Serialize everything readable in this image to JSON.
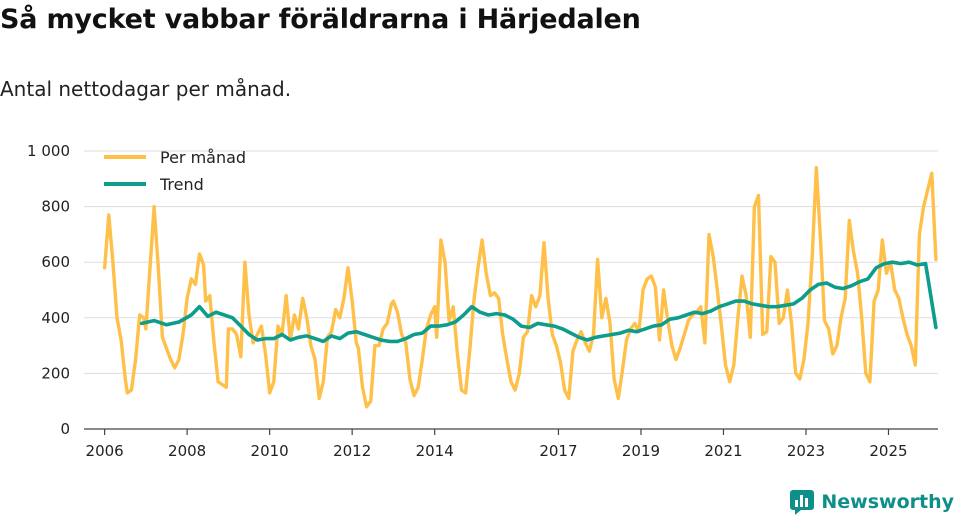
{
  "title": "Så mycket vabbar föräldrarna i Härjedalen",
  "subtitle": "Antal nettodagar per månad.",
  "brand": {
    "name": "Newsworthy",
    "icon": "newsworthy-logo-icon"
  },
  "colors": {
    "monthly": "#FFC04A",
    "trend": "#0E9C8C",
    "grid": "#dddddd",
    "axis": "#444444"
  },
  "chart_data": {
    "type": "line",
    "ylim": [
      0,
      1000
    ],
    "xlim": [
      2005.5,
      2026.2
    ],
    "y_ticks": [
      0,
      200,
      400,
      600,
      800,
      1000
    ],
    "y_tick_labels": [
      "0",
      "200",
      "400",
      "600",
      "800",
      "1 000"
    ],
    "x_ticks": [
      2006,
      2008,
      2010,
      2012,
      2014,
      2017,
      2019,
      2021,
      2023,
      2025
    ],
    "x_tick_labels": [
      "2006",
      "2008",
      "2010",
      "2012",
      "2014",
      "2017",
      "2019",
      "2021",
      "2023",
      "2025"
    ],
    "legend": {
      "position": "top-left",
      "entries": [
        "Per månad",
        "Trend"
      ]
    },
    "series": [
      {
        "name": "Per månad",
        "points": [
          [
            2006.0,
            580
          ],
          [
            2006.1,
            770
          ],
          [
            2006.2,
            600
          ],
          [
            2006.3,
            400
          ],
          [
            2006.4,
            320
          ],
          [
            2006.5,
            180
          ],
          [
            2006.55,
            130
          ],
          [
            2006.65,
            140
          ],
          [
            2006.75,
            250
          ],
          [
            2006.85,
            410
          ],
          [
            2006.95,
            400
          ],
          [
            2007.0,
            360
          ],
          [
            2007.1,
            580
          ],
          [
            2007.2,
            800
          ],
          [
            2007.3,
            580
          ],
          [
            2007.4,
            330
          ],
          [
            2007.5,
            290
          ],
          [
            2007.6,
            250
          ],
          [
            2007.7,
            220
          ],
          [
            2007.8,
            250
          ],
          [
            2007.9,
            340
          ],
          [
            2008.0,
            470
          ],
          [
            2008.1,
            540
          ],
          [
            2008.2,
            520
          ],
          [
            2008.3,
            630
          ],
          [
            2008.4,
            590
          ],
          [
            2008.45,
            460
          ],
          [
            2008.55,
            480
          ],
          [
            2008.65,
            310
          ],
          [
            2008.75,
            170
          ],
          [
            2008.85,
            160
          ],
          [
            2008.95,
            150
          ],
          [
            2009.0,
            360
          ],
          [
            2009.1,
            360
          ],
          [
            2009.2,
            340
          ],
          [
            2009.3,
            260
          ],
          [
            2009.4,
            600
          ],
          [
            2009.5,
            410
          ],
          [
            2009.6,
            310
          ],
          [
            2009.7,
            340
          ],
          [
            2009.8,
            370
          ],
          [
            2009.9,
            270
          ],
          [
            2010.0,
            130
          ],
          [
            2010.1,
            170
          ],
          [
            2010.2,
            370
          ],
          [
            2010.3,
            340
          ],
          [
            2010.4,
            480
          ],
          [
            2010.5,
            320
          ],
          [
            2010.6,
            410
          ],
          [
            2010.7,
            360
          ],
          [
            2010.8,
            470
          ],
          [
            2010.9,
            400
          ],
          [
            2011.0,
            300
          ],
          [
            2011.1,
            250
          ],
          [
            2011.2,
            110
          ],
          [
            2011.3,
            170
          ],
          [
            2011.4,
            330
          ],
          [
            2011.5,
            350
          ],
          [
            2011.6,
            430
          ],
          [
            2011.7,
            400
          ],
          [
            2011.8,
            470
          ],
          [
            2011.9,
            580
          ],
          [
            2012.0,
            460
          ],
          [
            2012.1,
            310
          ],
          [
            2012.15,
            290
          ],
          [
            2012.25,
            150
          ],
          [
            2012.35,
            80
          ],
          [
            2012.45,
            100
          ],
          [
            2012.55,
            300
          ],
          [
            2012.65,
            300
          ],
          [
            2012.75,
            360
          ],
          [
            2012.85,
            380
          ],
          [
            2012.95,
            450
          ],
          [
            2013.0,
            460
          ],
          [
            2013.1,
            420
          ],
          [
            2013.2,
            340
          ],
          [
            2013.3,
            310
          ],
          [
            2013.4,
            180
          ],
          [
            2013.5,
            120
          ],
          [
            2013.6,
            150
          ],
          [
            2013.7,
            250
          ],
          [
            2013.8,
            360
          ],
          [
            2013.9,
            410
          ],
          [
            2014.0,
            440
          ],
          [
            2014.05,
            330
          ],
          [
            2014.15,
            680
          ],
          [
            2014.25,
            600
          ],
          [
            2014.35,
            390
          ],
          [
            2014.45,
            440
          ],
          [
            2014.55,
            270
          ],
          [
            2014.65,
            140
          ],
          [
            2014.75,
            130
          ],
          [
            2014.85,
            280
          ],
          [
            2014.95,
            460
          ],
          [
            2015.05,
            580
          ],
          [
            2015.15,
            680
          ],
          [
            2015.25,
            560
          ],
          [
            2015.35,
            480
          ],
          [
            2015.45,
            490
          ],
          [
            2015.55,
            470
          ],
          [
            2015.65,
            340
          ],
          [
            2015.75,
            250
          ],
          [
            2015.85,
            170
          ],
          [
            2015.95,
            140
          ],
          [
            2016.05,
            200
          ],
          [
            2016.15,
            330
          ],
          [
            2016.25,
            350
          ],
          [
            2016.35,
            480
          ],
          [
            2016.45,
            440
          ],
          [
            2016.55,
            480
          ],
          [
            2016.65,
            670
          ],
          [
            2016.75,
            470
          ],
          [
            2016.85,
            340
          ],
          [
            2016.95,
            300
          ],
          [
            2017.05,
            240
          ],
          [
            2017.15,
            140
          ],
          [
            2017.25,
            110
          ],
          [
            2017.35,
            280
          ],
          [
            2017.45,
            320
          ],
          [
            2017.55,
            350
          ],
          [
            2017.65,
            310
          ],
          [
            2017.75,
            280
          ],
          [
            2017.85,
            340
          ],
          [
            2017.95,
            610
          ],
          [
            2018.05,
            400
          ],
          [
            2018.15,
            470
          ],
          [
            2018.25,
            380
          ],
          [
            2018.35,
            180
          ],
          [
            2018.45,
            110
          ],
          [
            2018.55,
            210
          ],
          [
            2018.65,
            320
          ],
          [
            2018.75,
            360
          ],
          [
            2018.85,
            380
          ],
          [
            2018.95,
            350
          ],
          [
            2019.05,
            500
          ],
          [
            2019.15,
            540
          ],
          [
            2019.25,
            550
          ],
          [
            2019.35,
            510
          ],
          [
            2019.45,
            320
          ],
          [
            2019.55,
            500
          ],
          [
            2019.65,
            390
          ],
          [
            2019.75,
            300
          ],
          [
            2019.85,
            250
          ],
          [
            2019.95,
            290
          ],
          [
            2020.05,
            340
          ],
          [
            2020.15,
            390
          ],
          [
            2020.25,
            410
          ],
          [
            2020.35,
            420
          ],
          [
            2020.45,
            440
          ],
          [
            2020.55,
            310
          ],
          [
            2020.65,
            700
          ],
          [
            2020.75,
            620
          ],
          [
            2020.85,
            500
          ],
          [
            2020.95,
            370
          ],
          [
            2021.05,
            230
          ],
          [
            2021.15,
            170
          ],
          [
            2021.25,
            230
          ],
          [
            2021.35,
            400
          ],
          [
            2021.45,
            550
          ],
          [
            2021.55,
            480
          ],
          [
            2021.65,
            330
          ],
          [
            2021.75,
            800
          ],
          [
            2021.85,
            840
          ],
          [
            2021.95,
            340
          ],
          [
            2022.05,
            350
          ],
          [
            2022.15,
            620
          ],
          [
            2022.25,
            600
          ],
          [
            2022.35,
            380
          ],
          [
            2022.45,
            400
          ],
          [
            2022.55,
            500
          ],
          [
            2022.65,
            380
          ],
          [
            2022.75,
            200
          ],
          [
            2022.85,
            180
          ],
          [
            2022.95,
            250
          ],
          [
            2023.05,
            380
          ],
          [
            2023.15,
            620
          ],
          [
            2023.25,
            940
          ],
          [
            2023.35,
            690
          ],
          [
            2023.45,
            390
          ],
          [
            2023.55,
            360
          ],
          [
            2023.65,
            270
          ],
          [
            2023.75,
            300
          ],
          [
            2023.85,
            400
          ],
          [
            2023.95,
            470
          ],
          [
            2024.05,
            750
          ],
          [
            2024.15,
            640
          ],
          [
            2024.25,
            560
          ],
          [
            2024.35,
            400
          ],
          [
            2024.45,
            200
          ],
          [
            2024.55,
            170
          ],
          [
            2024.65,
            460
          ],
          [
            2024.75,
            500
          ],
          [
            2024.85,
            680
          ],
          [
            2024.95,
            560
          ],
          [
            2025.05,
            600
          ],
          [
            2025.15,
            500
          ],
          [
            2025.25,
            470
          ],
          [
            2025.35,
            400
          ],
          [
            2025.45,
            340
          ],
          [
            2025.55,
            300
          ],
          [
            2025.65,
            230
          ],
          [
            2025.75,
            700
          ],
          [
            2025.85,
            800
          ],
          [
            2025.95,
            860
          ],
          [
            2026.05,
            920
          ],
          [
            2026.15,
            610
          ]
        ]
      },
      {
        "name": "Trend",
        "points": [
          [
            2006.9,
            380
          ],
          [
            2007.2,
            390
          ],
          [
            2007.5,
            375
          ],
          [
            2007.8,
            385
          ],
          [
            2008.1,
            410
          ],
          [
            2008.3,
            440
          ],
          [
            2008.5,
            405
          ],
          [
            2008.7,
            420
          ],
          [
            2008.9,
            410
          ],
          [
            2009.1,
            400
          ],
          [
            2009.3,
            370
          ],
          [
            2009.5,
            340
          ],
          [
            2009.7,
            320
          ],
          [
            2009.9,
            325
          ],
          [
            2010.1,
            325
          ],
          [
            2010.3,
            340
          ],
          [
            2010.5,
            320
          ],
          [
            2010.7,
            330
          ],
          [
            2010.9,
            335
          ],
          [
            2011.1,
            325
          ],
          [
            2011.3,
            315
          ],
          [
            2011.5,
            335
          ],
          [
            2011.7,
            325
          ],
          [
            2011.9,
            345
          ],
          [
            2012.1,
            350
          ],
          [
            2012.3,
            340
          ],
          [
            2012.5,
            330
          ],
          [
            2012.7,
            320
          ],
          [
            2012.9,
            315
          ],
          [
            2013.1,
            315
          ],
          [
            2013.3,
            325
          ],
          [
            2013.5,
            340
          ],
          [
            2013.7,
            345
          ],
          [
            2013.9,
            370
          ],
          [
            2014.1,
            370
          ],
          [
            2014.3,
            375
          ],
          [
            2014.5,
            385
          ],
          [
            2014.7,
            410
          ],
          [
            2014.9,
            440
          ],
          [
            2015.1,
            420
          ],
          [
            2015.3,
            410
          ],
          [
            2015.5,
            415
          ],
          [
            2015.7,
            410
          ],
          [
            2015.9,
            395
          ],
          [
            2016.1,
            370
          ],
          [
            2016.3,
            365
          ],
          [
            2016.5,
            380
          ],
          [
            2016.7,
            375
          ],
          [
            2016.9,
            370
          ],
          [
            2017.1,
            360
          ],
          [
            2017.3,
            345
          ],
          [
            2017.5,
            330
          ],
          [
            2017.7,
            320
          ],
          [
            2017.9,
            330
          ],
          [
            2018.1,
            335
          ],
          [
            2018.3,
            340
          ],
          [
            2018.5,
            345
          ],
          [
            2018.7,
            355
          ],
          [
            2018.9,
            350
          ],
          [
            2019.1,
            360
          ],
          [
            2019.3,
            370
          ],
          [
            2019.5,
            375
          ],
          [
            2019.7,
            395
          ],
          [
            2019.9,
            400
          ],
          [
            2020.1,
            410
          ],
          [
            2020.3,
            420
          ],
          [
            2020.5,
            415
          ],
          [
            2020.7,
            425
          ],
          [
            2020.9,
            440
          ],
          [
            2021.1,
            450
          ],
          [
            2021.3,
            460
          ],
          [
            2021.5,
            460
          ],
          [
            2021.7,
            450
          ],
          [
            2021.9,
            445
          ],
          [
            2022.1,
            440
          ],
          [
            2022.3,
            440
          ],
          [
            2022.5,
            445
          ],
          [
            2022.7,
            450
          ],
          [
            2022.9,
            470
          ],
          [
            2023.1,
            500
          ],
          [
            2023.3,
            520
          ],
          [
            2023.5,
            525
          ],
          [
            2023.7,
            510
          ],
          [
            2023.9,
            505
          ],
          [
            2024.1,
            515
          ],
          [
            2024.3,
            530
          ],
          [
            2024.5,
            540
          ],
          [
            2024.7,
            580
          ],
          [
            2024.9,
            595
          ],
          [
            2025.1,
            600
          ],
          [
            2025.3,
            595
          ],
          [
            2025.5,
            600
          ],
          [
            2025.7,
            590
          ],
          [
            2025.9,
            595
          ],
          [
            2026.15,
            365
          ]
        ]
      }
    ]
  }
}
